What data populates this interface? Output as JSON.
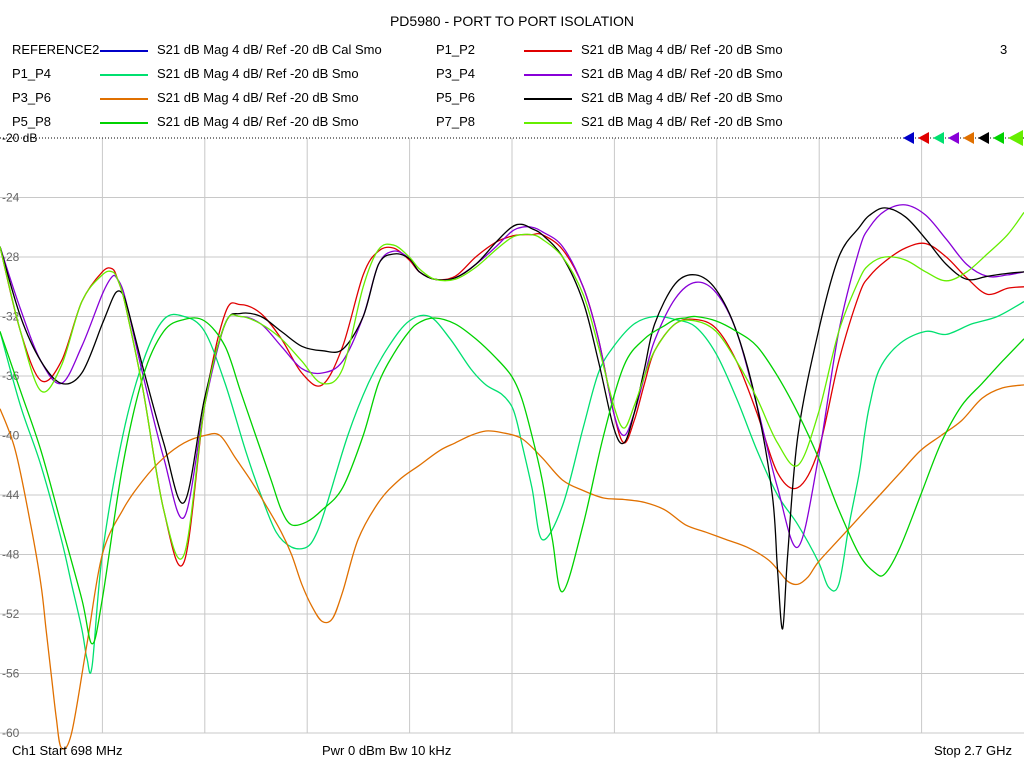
{
  "window": {
    "title": "PD5980 - PORT TO PORT ISOLATION",
    "channel_number": "3"
  },
  "footer": {
    "start": "Ch1  Start  698 MHz",
    "mid": "Pwr  0 dBm  Bw  10 kHz",
    "stop": "Stop  2.7 GHz"
  },
  "chart_data": {
    "type": "line",
    "title": "PD5980 - PORT TO PORT ISOLATION",
    "xlabel": "",
    "ylabel": "",
    "xlim": [
      698,
      2700
    ],
    "x_unit": "MHz",
    "ylim": [
      -60,
      -20
    ],
    "y_unit": "dB",
    "y_ticks": [
      -20,
      -24,
      -28,
      -32,
      -36,
      -40,
      -44,
      -48,
      -52,
      -56,
      -60
    ],
    "y_tick_labels": [
      "-20 dB",
      "-24",
      "-28",
      "-32",
      "-36",
      "-40",
      "-44",
      "-48",
      "-52",
      "-56",
      "-60"
    ],
    "grid": true,
    "x_divisions": 10,
    "reference_level": -20,
    "legend_position": "top",
    "series": [
      {
        "name": "REFERENCE2",
        "desc": "S21  dB Mag  4 dB/ Ref -20 dB  Cal Smo",
        "color": "#0000c8",
        "x": [],
        "values": []
      },
      {
        "name": "P1_P2",
        "desc": "S21  dB Mag  4 dB/ Ref -20 dB  Smo",
        "color": "#e00000",
        "x": [
          698,
          738,
          778,
          818,
          858,
          898,
          918,
          928,
          938,
          948,
          978,
          1018,
          1058,
          1098,
          1138,
          1168,
          1208,
          1248,
          1288,
          1328,
          1368,
          1408,
          1438,
          1468,
          1498,
          1518,
          1548,
          1588,
          1628,
          1668,
          1698,
          1718,
          1738,
          1758,
          1798,
          1838,
          1868,
          1898,
          1918,
          1938,
          1958,
          1978,
          2018,
          2058,
          2098,
          2138,
          2178,
          2218,
          2258,
          2298,
          2338,
          2378,
          2398,
          2428,
          2468,
          2508,
          2548,
          2588,
          2628,
          2668,
          2700
        ],
        "values": [
          -27.3,
          -33,
          -36.3,
          -35,
          -31,
          -29,
          -28.8,
          -29.5,
          -30.5,
          -32,
          -37,
          -45,
          -48.5,
          -38,
          -31.8,
          -31.2,
          -31.8,
          -33.5,
          -35.8,
          -36.6,
          -34,
          -29.2,
          -27.6,
          -27.4,
          -28.2,
          -29,
          -29.5,
          -29.3,
          -28,
          -27,
          -26.6,
          -26.5,
          -26.5,
          -26.5,
          -27.5,
          -30,
          -33.5,
          -38.5,
          -40.5,
          -39,
          -36.5,
          -34.3,
          -32.5,
          -32.2,
          -32.8,
          -35,
          -38.5,
          -42.5,
          -43.5,
          -41,
          -35,
          -30.5,
          -29.3,
          -28.3,
          -27.4,
          -27.1,
          -28,
          -29.4,
          -30.5,
          -30.1,
          -30
        ]
      },
      {
        "name": "P1_P4",
        "desc": "S21  dB Mag  4 dB/ Ref -20 dB  Smo",
        "color": "#00e070",
        "x": [
          698,
          738,
          778,
          818,
          838,
          858,
          868,
          878,
          898,
          938,
          978,
          1018,
          1058,
          1098,
          1138,
          1178,
          1208,
          1238,
          1268,
          1298,
          1318,
          1338,
          1378,
          1418,
          1458,
          1498,
          1538,
          1578,
          1618,
          1648,
          1678,
          1698,
          1708,
          1718,
          1738,
          1758,
          1798,
          1838,
          1868,
          1898,
          1938,
          1978,
          2018,
          2058,
          2098,
          2138,
          2178,
          2218,
          2258,
          2298,
          2318,
          2338,
          2358,
          2378,
          2388,
          2398,
          2418,
          2458,
          2508,
          2548,
          2598,
          2648,
          2700
        ],
        "values": [
          -33,
          -38,
          -42,
          -47,
          -50,
          -53,
          -55,
          -55.5,
          -48,
          -40,
          -35,
          -32.2,
          -32,
          -33,
          -36.5,
          -41,
          -44,
          -46.5,
          -47.5,
          -47.5,
          -46.5,
          -44.5,
          -40,
          -36.5,
          -34,
          -32.3,
          -32,
          -33.5,
          -35.5,
          -36.6,
          -37.2,
          -38,
          -39,
          -40.5,
          -43.5,
          -47,
          -44.7,
          -39.5,
          -35.8,
          -34,
          -32.5,
          -32,
          -32.2,
          -32.7,
          -34.5,
          -37.5,
          -41,
          -44,
          -46,
          -48.5,
          -50.2,
          -50,
          -46,
          -42.5,
          -40,
          -38,
          -35.5,
          -33.8,
          -33,
          -33.2,
          -32.5,
          -32,
          -31
        ]
      },
      {
        "name": "P3_P4",
        "desc": "S21  dB Mag  4 dB/ Ref -20 dB  Smo",
        "color": "#8800d8",
        "x": [
          698,
          738,
          778,
          818,
          858,
          898,
          918,
          928,
          938,
          948,
          978,
          1018,
          1058,
          1098,
          1138,
          1168,
          1208,
          1248,
          1288,
          1328,
          1368,
          1408,
          1438,
          1468,
          1498,
          1518,
          1548,
          1588,
          1628,
          1668,
          1698,
          1718,
          1738,
          1758,
          1798,
          1838,
          1868,
          1898,
          1918,
          1938,
          1958,
          1978,
          2018,
          2058,
          2098,
          2138,
          2178,
          2218,
          2258,
          2298,
          2338,
          2378,
          2398,
          2428,
          2468,
          2508,
          2548,
          2588,
          2628,
          2668,
          2700
        ],
        "values": [
          -27.3,
          -31.5,
          -35,
          -36.5,
          -34,
          -30.5,
          -29.3,
          -29.5,
          -30.2,
          -31.5,
          -36,
          -41.5,
          -45.5,
          -38,
          -32.5,
          -32,
          -32.5,
          -34,
          -35.5,
          -35.8,
          -35,
          -32,
          -28.5,
          -27.6,
          -28.1,
          -29,
          -29.5,
          -29.4,
          -28.5,
          -27.3,
          -26.3,
          -26,
          -26,
          -26.3,
          -27.3,
          -30,
          -33.5,
          -38.5,
          -40,
          -38.5,
          -36,
          -33.6,
          -30.8,
          -29.7,
          -30.4,
          -33,
          -38,
          -43.5,
          -47.5,
          -41.5,
          -33,
          -27.5,
          -26,
          -24.9,
          -24.5,
          -25.2,
          -26.8,
          -28.5,
          -29.3,
          -29.2,
          -29
        ]
      },
      {
        "name": "P3_P6",
        "desc": "S21  dB Mag  4 dB/ Ref -20 dB  Smo",
        "color": "#e07000",
        "x": [
          698,
          728,
          758,
          778,
          788,
          798,
          808,
          818,
          838,
          868,
          898,
          938,
          978,
          1018,
          1058,
          1098,
          1128,
          1158,
          1188,
          1218,
          1248,
          1268,
          1288,
          1308,
          1328,
          1348,
          1368,
          1398,
          1438,
          1478,
          1518,
          1558,
          1588,
          1618,
          1648,
          1678,
          1718,
          1758,
          1798,
          1838,
          1878,
          1918,
          1958,
          1998,
          2038,
          2078,
          2118,
          2158,
          2198,
          2218,
          2238,
          2258,
          2278,
          2298,
          2338,
          2378,
          2418,
          2458,
          2498,
          2538,
          2578,
          2618,
          2658,
          2700
        ],
        "values": [
          -38.2,
          -41,
          -46,
          -50,
          -53,
          -56,
          -59,
          -61,
          -60,
          -54,
          -48,
          -45,
          -43,
          -41.5,
          -40.5,
          -40,
          -40,
          -41.5,
          -43,
          -44.7,
          -46.5,
          -48,
          -50,
          -51.5,
          -52.5,
          -52.3,
          -50.5,
          -47,
          -44.5,
          -43,
          -42,
          -41,
          -40.5,
          -40,
          -39.7,
          -39.8,
          -40.2,
          -41.5,
          -43,
          -43.7,
          -44.2,
          -44.3,
          -44.5,
          -45,
          -46,
          -46.5,
          -47,
          -47.5,
          -48.3,
          -49,
          -49.8,
          -50,
          -49.5,
          -48.5,
          -47,
          -45.5,
          -44,
          -42.5,
          -41,
          -40,
          -39,
          -37.5,
          -36.8,
          -36.6
        ]
      },
      {
        "name": "P5_P6",
        "desc": "S21  dB Mag  4 dB/ Ref -20 dB  Smo",
        "color": "#000000",
        "x": [
          698,
          738,
          778,
          818,
          858,
          898,
          918,
          928,
          938,
          948,
          978,
          1018,
          1058,
          1098,
          1138,
          1168,
          1208,
          1248,
          1288,
          1328,
          1368,
          1408,
          1438,
          1468,
          1498,
          1518,
          1548,
          1588,
          1628,
          1668,
          1698,
          1718,
          1738,
          1758,
          1798,
          1838,
          1868,
          1898,
          1918,
          1938,
          1958,
          1978,
          2018,
          2058,
          2098,
          2138,
          2178,
          2208,
          2218,
          2228,
          2238,
          2258,
          2298,
          2338,
          2378,
          2398,
          2428,
          2468,
          2508,
          2548,
          2588,
          2628,
          2668,
          2700
        ],
        "values": [
          -27.3,
          -32,
          -35,
          -36.5,
          -35.8,
          -32.5,
          -30.8,
          -30.3,
          -30.5,
          -31.5,
          -35.5,
          -40.5,
          -44.5,
          -37.5,
          -32.5,
          -31.8,
          -32,
          -33,
          -34,
          -34.3,
          -34.2,
          -32,
          -28.5,
          -27.8,
          -28.1,
          -29,
          -29.5,
          -29.4,
          -28.5,
          -27,
          -26,
          -25.8,
          -26.1,
          -26.5,
          -28,
          -31,
          -35,
          -39.5,
          -40.5,
          -38.5,
          -35.5,
          -32.5,
          -29.8,
          -29.2,
          -30.2,
          -33,
          -38,
          -44,
          -49,
          -53,
          -48,
          -40,
          -33,
          -28,
          -26,
          -25.2,
          -24.7,
          -25.3,
          -26.8,
          -28.5,
          -29.5,
          -29.3,
          -29.1,
          -29
        ]
      },
      {
        "name": "P5_P8",
        "desc": "S21  dB Mag  4 dB/ Ref -20 dB  Smo",
        "color": "#00d200",
        "x": [
          698,
          738,
          778,
          818,
          858,
          878,
          898,
          938,
          978,
          1018,
          1058,
          1098,
          1138,
          1168,
          1198,
          1228,
          1248,
          1268,
          1298,
          1328,
          1368,
          1408,
          1438,
          1468,
          1498,
          1518,
          1548,
          1588,
          1628,
          1668,
          1698,
          1718,
          1738,
          1758,
          1778,
          1798,
          1838,
          1878,
          1918,
          1958,
          1998,
          2018,
          2038,
          2058,
          2098,
          2138,
          2178,
          2218,
          2258,
          2298,
          2338,
          2378,
          2408,
          2428,
          2458,
          2498,
          2538,
          2578,
          2618,
          2658,
          2700
        ],
        "values": [
          -33,
          -37,
          -41,
          -46,
          -51,
          -54,
          -51,
          -42,
          -36,
          -33,
          -32.2,
          -32.3,
          -34,
          -37,
          -40,
          -43,
          -45,
          -46,
          -45.8,
          -45,
          -43.5,
          -40,
          -36.5,
          -34.5,
          -33,
          -32.4,
          -32.1,
          -32.5,
          -33.5,
          -34.8,
          -36,
          -37.5,
          -40,
          -43,
          -47,
          -50.5,
          -46,
          -40,
          -35.3,
          -33.5,
          -32.6,
          -32.2,
          -32.1,
          -32,
          -32.3,
          -33,
          -34,
          -36,
          -38.5,
          -41.5,
          -45,
          -48,
          -49.2,
          -49.3,
          -47.5,
          -44,
          -40.5,
          -38,
          -36.5,
          -35,
          -33.5
        ]
      },
      {
        "name": "P7_P8",
        "desc": "S21  dB Mag  4 dB/ Ref -20 dB  Smo",
        "color": "#66ee00",
        "x": [
          698,
          738,
          778,
          818,
          858,
          898,
          918,
          928,
          938,
          948,
          978,
          1018,
          1058,
          1098,
          1138,
          1168,
          1208,
          1248,
          1288,
          1328,
          1368,
          1408,
          1438,
          1468,
          1498,
          1518,
          1548,
          1588,
          1628,
          1668,
          1698,
          1718,
          1738,
          1758,
          1798,
          1838,
          1868,
          1898,
          1918,
          1938,
          1958,
          1978,
          2018,
          2058,
          2098,
          2138,
          2178,
          2218,
          2258,
          2298,
          2338,
          2378,
          2398,
          2428,
          2468,
          2508,
          2548,
          2588,
          2628,
          2668,
          2700
        ],
        "values": [
          -27.3,
          -33,
          -37,
          -35.3,
          -31,
          -29.2,
          -29,
          -29.5,
          -30.5,
          -32,
          -37,
          -45,
          -48,
          -38,
          -32.5,
          -32,
          -32.5,
          -33.5,
          -35,
          -36.5,
          -35.5,
          -30,
          -27.5,
          -27.2,
          -28,
          -28.8,
          -29.5,
          -29.5,
          -28.7,
          -27.5,
          -26.7,
          -26.5,
          -26.5,
          -26.8,
          -28,
          -30.5,
          -34,
          -38,
          -39.5,
          -38,
          -36,
          -34.3,
          -32.5,
          -32.3,
          -33,
          -35,
          -37.5,
          -40.5,
          -42,
          -38.5,
          -33,
          -29.5,
          -28.5,
          -28,
          -28.2,
          -29,
          -29.6,
          -29,
          -27.8,
          -26.5,
          -25
        ]
      }
    ]
  }
}
